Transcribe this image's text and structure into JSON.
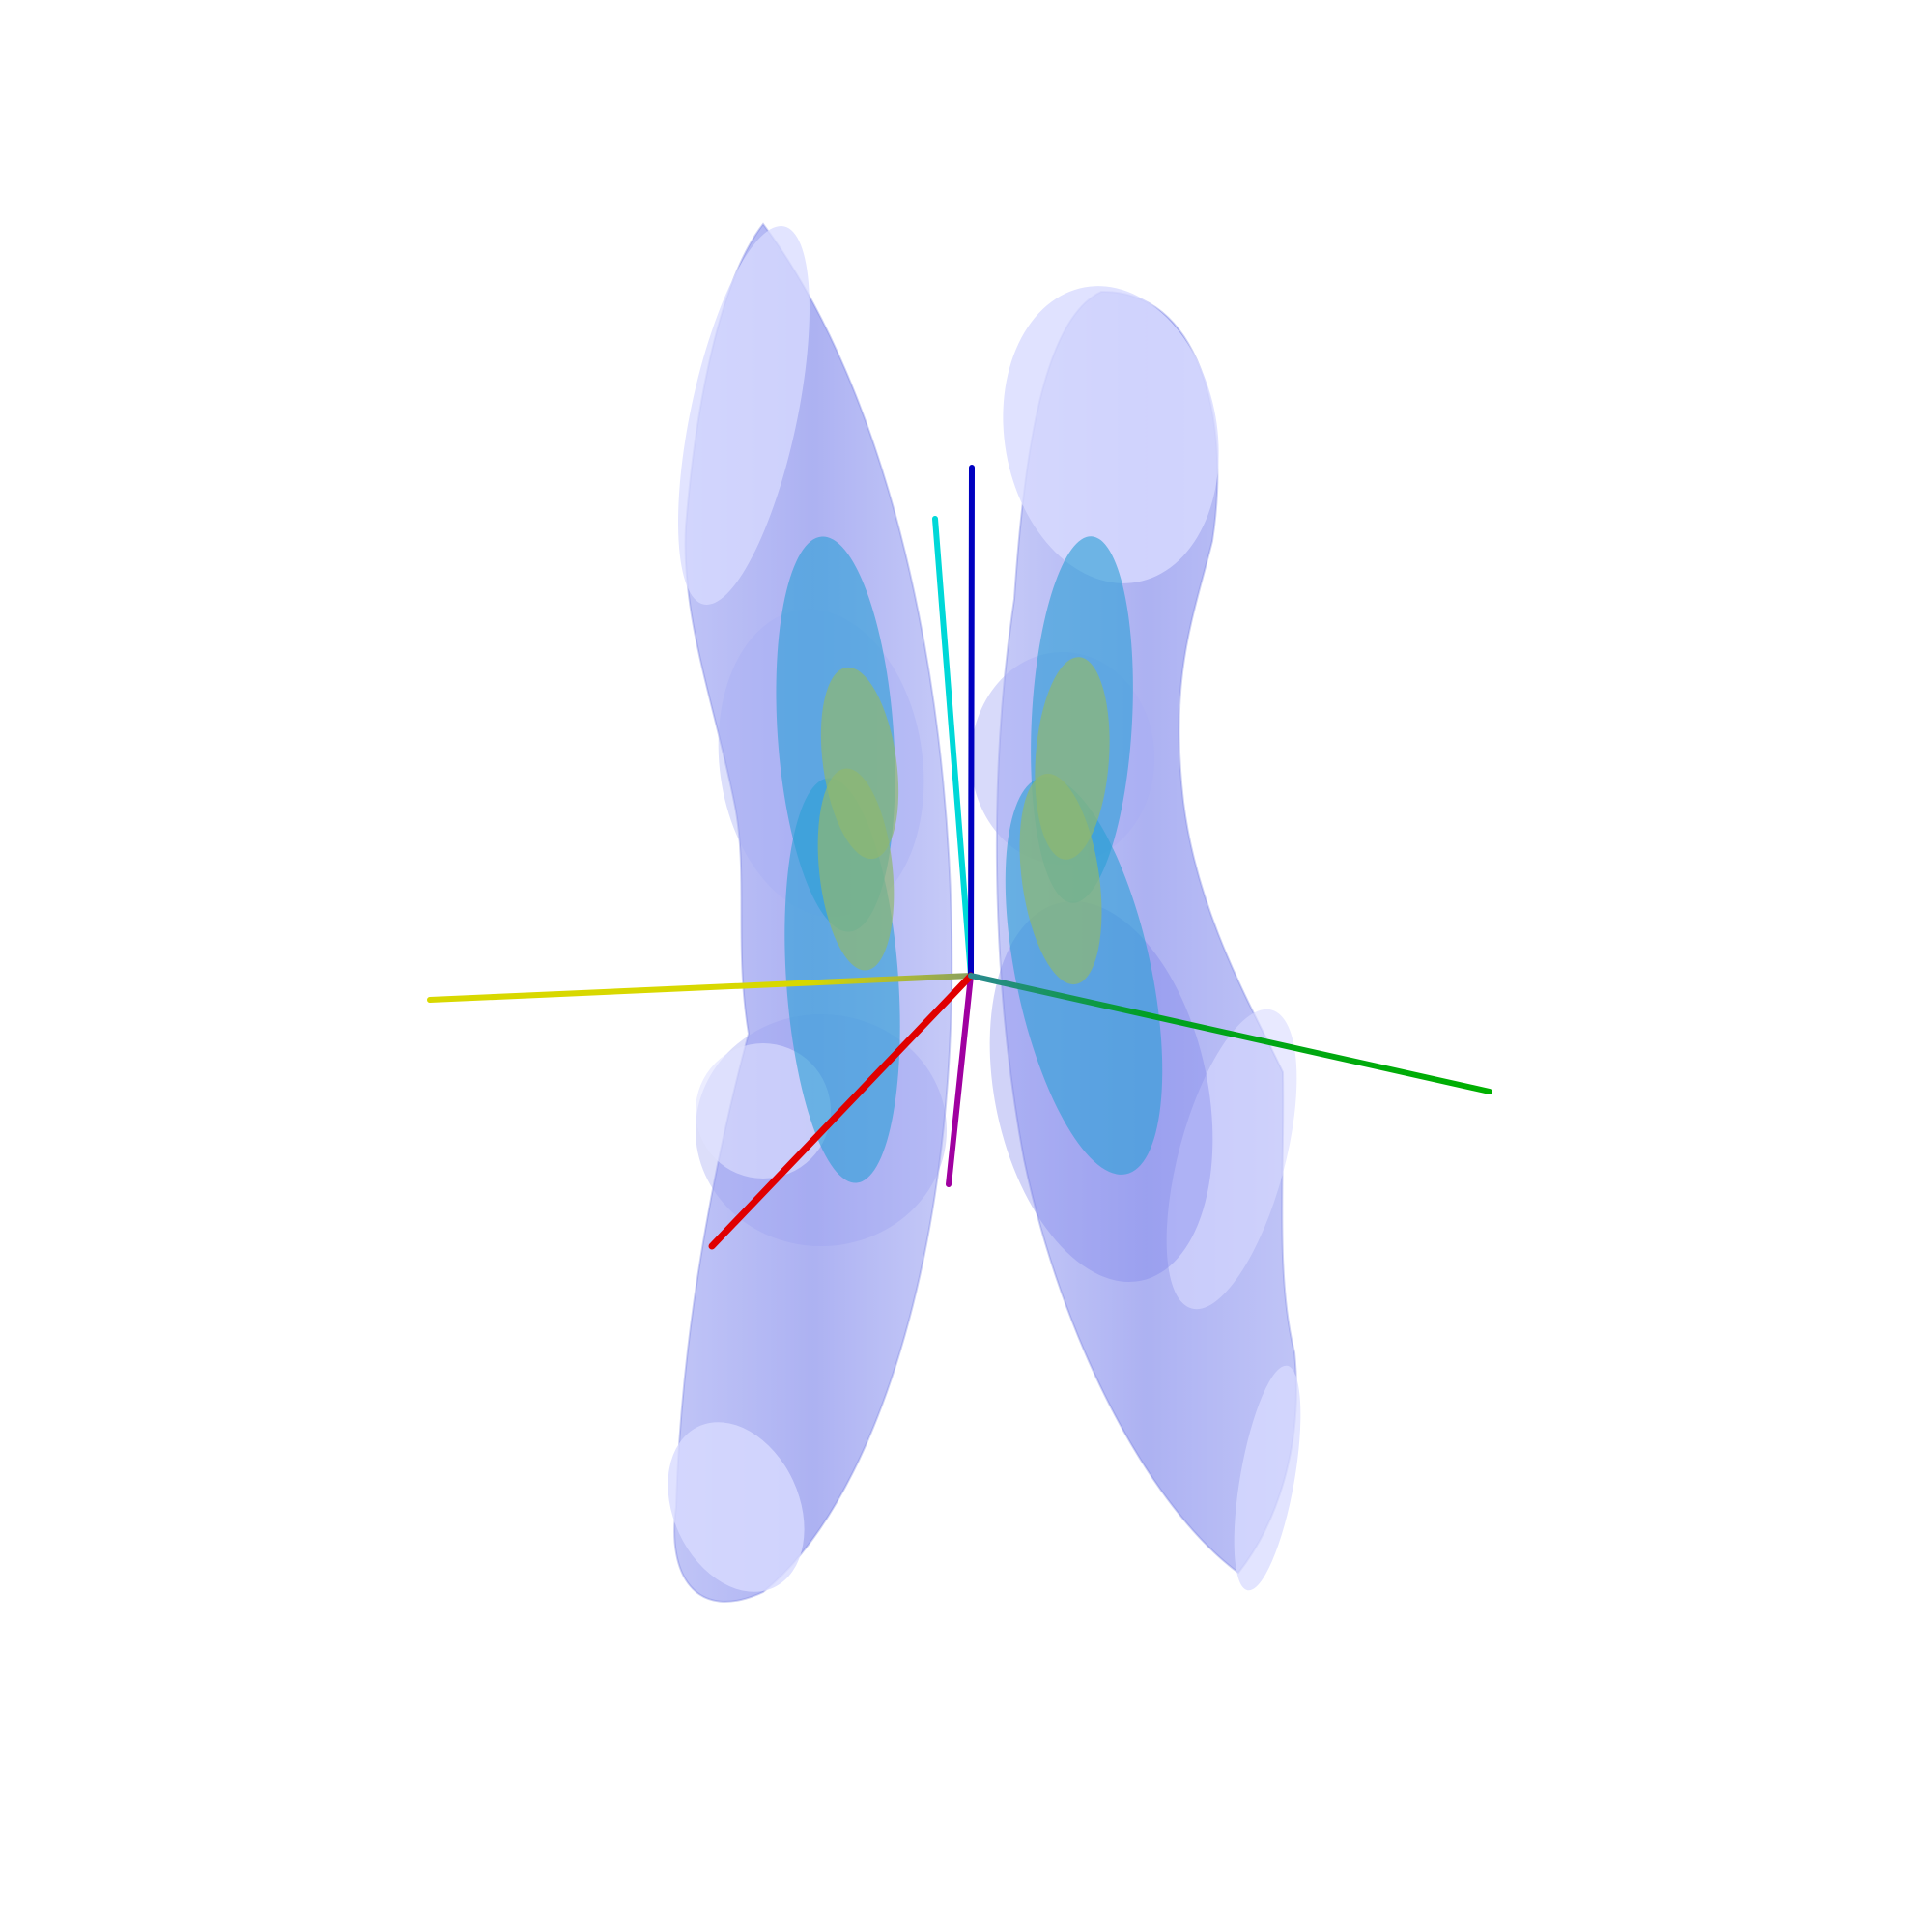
{
  "scene": {
    "background": "#ffffff",
    "surfaces": {
      "outer": {
        "color": "#8c94f0"
      },
      "middle": {
        "color": "#2f9fd6"
      },
      "inner": {
        "color": "#8fb870"
      }
    },
    "axes": [
      {
        "name": "x-positive",
        "color": "#e00000"
      },
      {
        "name": "x-negative",
        "color": "#d8d800"
      },
      {
        "name": "y-positive",
        "color": "#00b000"
      },
      {
        "name": "y-negative",
        "color": "#00d8d8"
      },
      {
        "name": "z-positive",
        "color": "#0000c0"
      },
      {
        "name": "z-negative",
        "color": "#a000a0"
      }
    ]
  }
}
